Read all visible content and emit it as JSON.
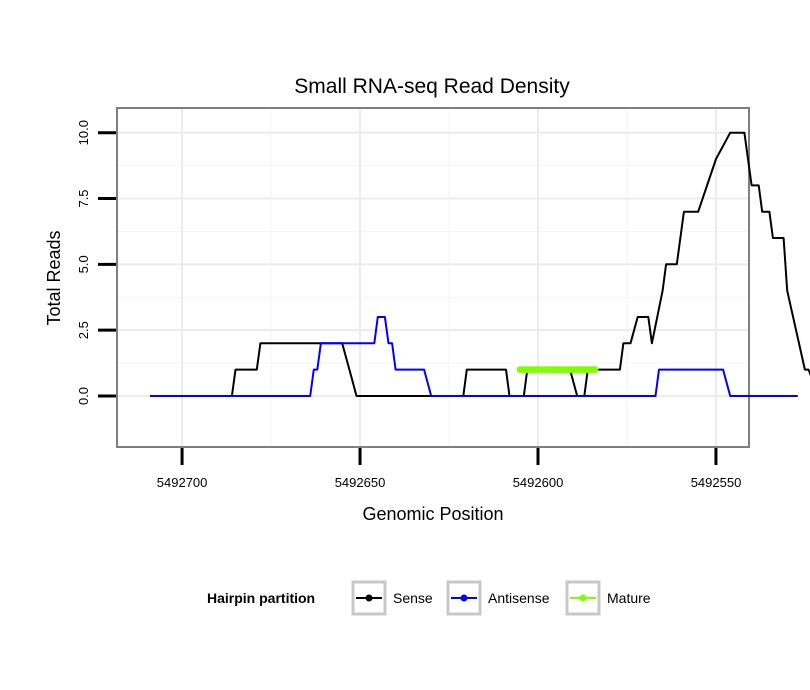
{
  "chart_data": {
    "type": "line",
    "title": "Small RNA-seq Read Density",
    "xlabel": "Genomic Position",
    "ylabel": "Total Reads",
    "xlim": [
      5492718,
      5492541
    ],
    "ylim": [
      -1.9,
      10.9
    ],
    "x_reversed": true,
    "grid": true,
    "x_ticks": [
      5492700,
      5492650,
      5492600,
      5492550
    ],
    "x_tick_labels": [
      "5492700",
      "5492650",
      "5492600",
      "5492550"
    ],
    "y_ticks": [
      0,
      2.5,
      5,
      7.5,
      10
    ],
    "y_tick_labels": [
      "0.0",
      "2.5",
      "5.0",
      "7.5",
      "10.0"
    ],
    "legend": {
      "title": "Hairpin partition",
      "position": "bottom",
      "items": [
        {
          "label": "Sense",
          "color": "#000000"
        },
        {
          "label": "Antisense",
          "color": "#0000ff"
        },
        {
          "label": "Mature",
          "color": "#7fff00"
        }
      ]
    },
    "series": [
      {
        "name": "Sense",
        "color": "#000000",
        "x": [
          5492709,
          5492686,
          5492685,
          5492679,
          5492678,
          5492655,
          5492653,
          5492651,
          5492621,
          5492620,
          5492609,
          5492608,
          5492604,
          5492603,
          5492596,
          5492591,
          5492589,
          5492587,
          5492586,
          5492577,
          5492576,
          5492574,
          5492572,
          5492569,
          5492568,
          5492565,
          5492564,
          5492561,
          5492559,
          5492558,
          5492555,
          5492550,
          5492546,
          5492545,
          5492543,
          5492542,
          5492540,
          5492538,
          5492537,
          5492535,
          5492534,
          5492531,
          5492530,
          5492525,
          5492524,
          5492521
        ],
        "y": [
          0,
          0,
          1,
          1,
          2,
          2,
          1,
          0,
          0,
          1,
          1,
          0,
          0,
          1,
          1,
          1,
          0,
          0,
          1,
          1,
          2,
          2,
          3,
          3,
          2,
          4,
          5,
          5,
          7,
          7,
          7,
          9,
          10,
          10,
          10,
          10,
          8,
          8,
          7,
          7,
          6,
          6,
          4,
          1,
          1,
          0
        ]
      },
      {
        "name": "Antisense",
        "color": "#0000ff",
        "x": [
          5492709,
          5492664,
          5492663,
          5492662,
          5492661,
          5492650,
          5492649,
          5492646,
          5492645,
          5492643,
          5492642,
          5492641,
          5492640,
          5492633,
          5492632,
          5492630,
          5492567,
          5492566,
          5492562,
          5492550,
          5492548,
          5492546,
          5492527
        ],
        "y": [
          0,
          0,
          1,
          1,
          2,
          2,
          2,
          2,
          3,
          3,
          2,
          2,
          1,
          1,
          1,
          0,
          0,
          1,
          1,
          1,
          1,
          0,
          0
        ]
      },
      {
        "name": "Mature",
        "color": "#7fff00",
        "x": [
          5492605,
          5492584
        ],
        "y": [
          1,
          1
        ]
      }
    ]
  }
}
